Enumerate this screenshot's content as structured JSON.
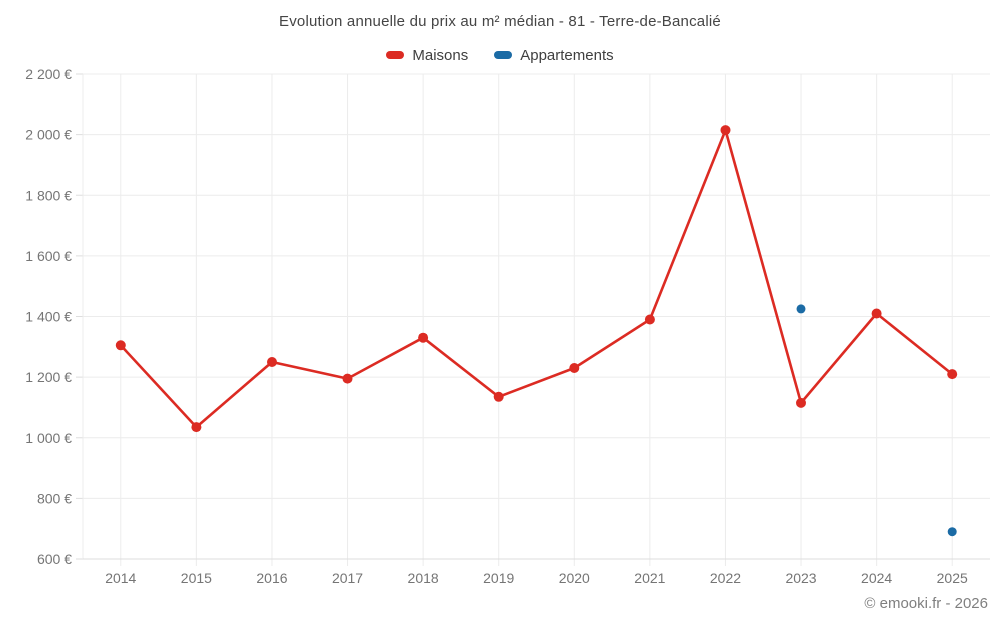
{
  "title": "Evolution annuelle du prix au m² médian - 81 - Terre-de-Bancalié",
  "footer": "© emooki.fr - 2026",
  "legend": [
    {
      "label": "Maisons",
      "color": "#dc2b23"
    },
    {
      "label": "Appartements",
      "color": "#1b6ba5"
    }
  ],
  "colors": {
    "grid": "#ececec",
    "axis": "#dddddd",
    "tick_text": "#757575"
  },
  "chart_data": {
    "type": "line",
    "title": "Evolution annuelle du prix au m² médian - 81 - Terre-de-Bancalié",
    "x": [
      2014,
      2015,
      2016,
      2017,
      2018,
      2019,
      2020,
      2021,
      2022,
      2023,
      2024,
      2025
    ],
    "series": [
      {
        "name": "Maisons",
        "color": "#dc2b23",
        "style": "line+markers",
        "marker_radius": 5,
        "line_width": 2.6,
        "values": [
          1305,
          1035,
          1250,
          1195,
          1330,
          1135,
          1230,
          1390,
          2015,
          1115,
          1410,
          1210
        ]
      },
      {
        "name": "Appartements",
        "color": "#1b6ba5",
        "style": "markers",
        "marker_radius": 4.5,
        "line_width": 0,
        "values": [
          null,
          null,
          null,
          null,
          null,
          null,
          null,
          null,
          null,
          1425,
          null,
          690
        ]
      }
    ],
    "xlabel": "",
    "ylabel": "",
    "ylim": [
      600,
      2200
    ],
    "ytick_step": 200,
    "ytick_suffix": " €",
    "yticks": [
      600,
      800,
      1000,
      1200,
      1400,
      1600,
      1800,
      2000,
      2200
    ],
    "grid": true,
    "legend_position": "top"
  }
}
